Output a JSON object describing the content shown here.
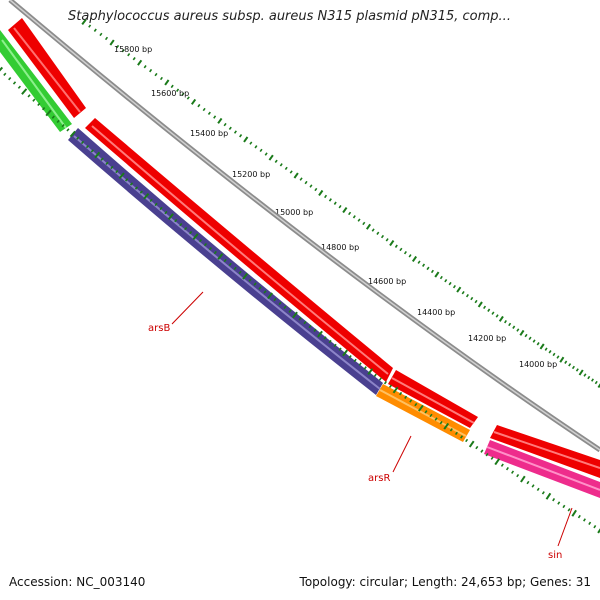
{
  "title": "Staphylococcus aureus subsp. aureus N315 plasmid pN315, comp...",
  "footer": {
    "accession": "Accession: NC_003140",
    "topology": "Topology: circular; Length: 24,653 bp; Genes: 31"
  },
  "ruler_labels": [
    {
      "bp": 15800,
      "text": "15800 bp"
    },
    {
      "bp": 15600,
      "text": "15600 bp"
    },
    {
      "bp": 15400,
      "text": "15400 bp"
    },
    {
      "bp": 15200,
      "text": "15200 bp"
    },
    {
      "bp": 15000,
      "text": "15000 bp"
    },
    {
      "bp": 14800,
      "text": "14800 bp"
    },
    {
      "bp": 14600,
      "text": "14600 bp"
    },
    {
      "bp": 14400,
      "text": "14400 bp"
    },
    {
      "bp": 14200,
      "text": "14200 bp"
    },
    {
      "bp": 14000,
      "text": "14000 bp"
    }
  ],
  "gene_labels": [
    {
      "name": "arsB",
      "color": "#cc0000"
    },
    {
      "name": "arsR",
      "color": "#cc0000"
    },
    {
      "name": "sin",
      "color": "#cc0000"
    }
  ],
  "colors": {
    "backbone": "#8c8c8c",
    "forward_genes": "#ee0000",
    "arsB": "#4a4090",
    "arsR": "#ff8c00",
    "sin": "#ee2c8c",
    "green_feature": "#33cc33",
    "ticks": "#1a7a1a"
  }
}
